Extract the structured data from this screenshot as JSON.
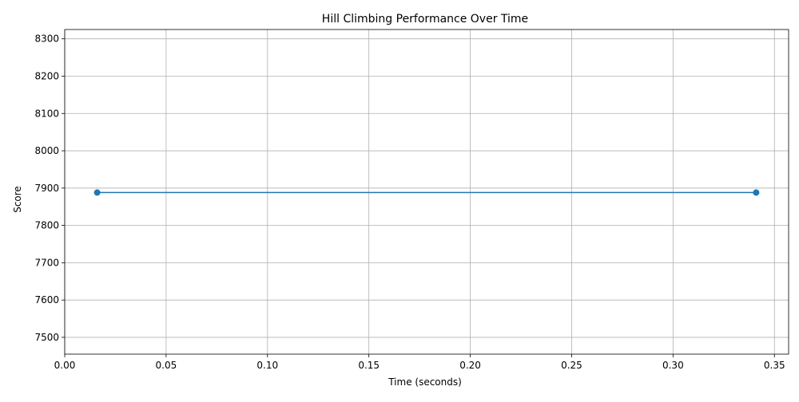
{
  "chart_data": {
    "type": "line",
    "title": "Hill Climbing Performance Over Time",
    "xlabel": "Time (seconds)",
    "ylabel": "Score",
    "xlim": [
      0,
      0.357
    ],
    "ylim": [
      7455,
      8325
    ],
    "xticks": [
      0.0,
      0.05,
      0.1,
      0.15,
      0.2,
      0.25,
      0.3,
      0.35
    ],
    "xtick_labels": [
      "0.00",
      "0.05",
      "0.10",
      "0.15",
      "0.20",
      "0.25",
      "0.30",
      "0.35"
    ],
    "yticks": [
      7500,
      7600,
      7700,
      7800,
      7900,
      8000,
      8100,
      8200,
      8300
    ],
    "ytick_labels": [
      "7500",
      "7600",
      "7700",
      "7800",
      "7900",
      "8000",
      "8100",
      "8200",
      "8300"
    ],
    "grid": true,
    "series": [
      {
        "color": "#1f77b4",
        "marker": "circle",
        "x": [
          0.016,
          0.341
        ],
        "y": [
          7888,
          7888
        ]
      }
    ]
  }
}
